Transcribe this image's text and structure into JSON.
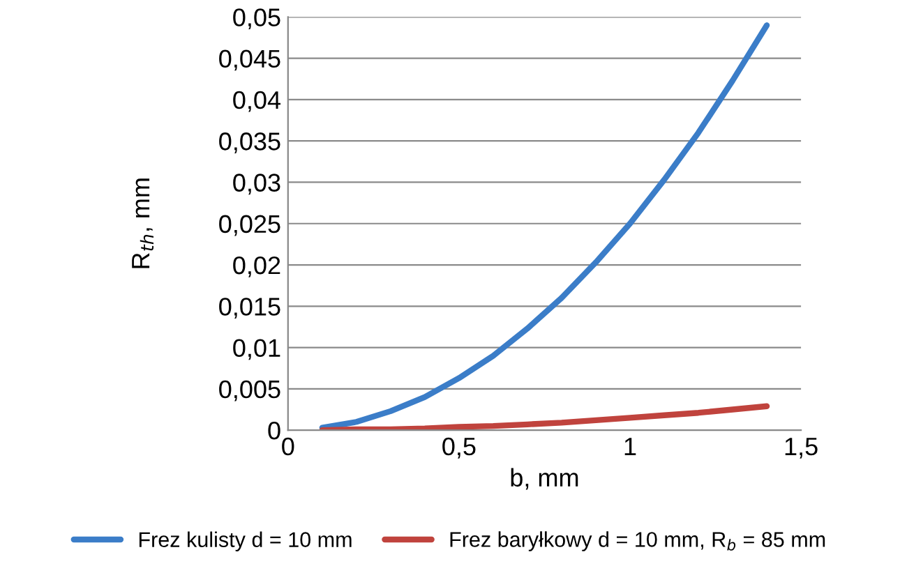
{
  "chart_data": {
    "type": "line",
    "xlabel": "b, mm",
    "ylabel": "R$_{th}$, mm",
    "xlim": [
      0,
      1.5
    ],
    "ylim": [
      0,
      0.05
    ],
    "xticks": [
      0,
      {
        "value": 0.5,
        "label": "0,5"
      },
      1,
      {
        "value": 1.5,
        "label": "1,5"
      }
    ],
    "yticks": [
      0,
      {
        "value": 0.005,
        "label": "0,005"
      },
      {
        "value": 0.01,
        "label": "0,01"
      },
      {
        "value": 0.015,
        "label": "0,015"
      },
      {
        "value": 0.02,
        "label": "0,02"
      },
      {
        "value": 0.025,
        "label": "0,025"
      },
      {
        "value": 0.03,
        "label": "0,03"
      },
      {
        "value": 0.035,
        "label": "0,035"
      },
      {
        "value": 0.04,
        "label": "0,04"
      },
      {
        "value": 0.045,
        "label": "0,045"
      },
      {
        "value": 0.05,
        "label": "0,05"
      }
    ],
    "grid": "y",
    "legend": "bottom",
    "marker": "none",
    "line_style": "solid",
    "x": [
      0.1,
      0.2,
      0.3,
      0.4,
      0.5,
      0.6,
      0.7,
      0.8,
      0.9,
      1.0,
      1.1,
      1.2,
      1.3,
      1.4
    ],
    "series": [
      {
        "name": "Frez kulisty d = 10 mm",
        "color": "#3b7dc8",
        "values": [
          0.0003,
          0.001,
          0.0023,
          0.004,
          0.0063,
          0.009,
          0.0123,
          0.016,
          0.0203,
          0.025,
          0.0303,
          0.036,
          0.0423,
          0.049
        ]
      },
      {
        "name": "Frez baryłkowy d = 10 mm, R$_{b}$ = 85 mm",
        "color": "#c0433d",
        "values": [
          0.0,
          0.0001,
          0.0001,
          0.0002,
          0.0004,
          0.0005,
          0.0007,
          0.0009,
          0.0012,
          0.0015,
          0.0018,
          0.0021,
          0.0025,
          0.0029
        ]
      }
    ]
  }
}
